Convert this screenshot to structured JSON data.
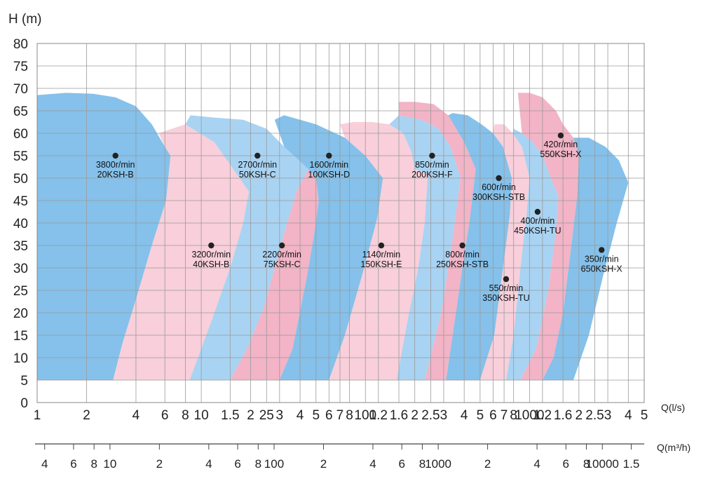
{
  "chart_data": {
    "type": "area",
    "title": "",
    "ylabel": "H (m)",
    "xlabel": "Q(l/s)",
    "x2label": "Q(m³/h)",
    "ylim": [
      0,
      80
    ],
    "xlim_ls": [
      1,
      5000
    ],
    "xlim_m3h": [
      3.6,
      18000
    ],
    "grid": true,
    "y_ticks": [
      "0",
      "5",
      "10",
      "15",
      "20",
      "25",
      "30",
      "35",
      "40",
      "45",
      "50",
      "55",
      "60",
      "65",
      "70",
      "75",
      "80"
    ],
    "x_ticks": [
      {
        "v": 1,
        "t": "1"
      },
      {
        "v": 2,
        "t": "2"
      },
      {
        "v": 4,
        "t": "4"
      },
      {
        "v": 6,
        "t": "6"
      },
      {
        "v": 8,
        "t": "8"
      },
      {
        "v": 10,
        "t": "10"
      },
      {
        "v": 15,
        "t": "1.5"
      },
      {
        "v": 20,
        "t": "2"
      },
      {
        "v": 25,
        "t": "25"
      },
      {
        "v": 30,
        "t": "3"
      },
      {
        "v": 40,
        "t": "4"
      },
      {
        "v": 50,
        "t": "5"
      },
      {
        "v": 60,
        "t": "6"
      },
      {
        "v": 70,
        "t": "7"
      },
      {
        "v": 80,
        "t": "8"
      },
      {
        "v": 100,
        "t": "100"
      },
      {
        "v": 120,
        "t": "1.2"
      },
      {
        "v": 160,
        "t": "1.6"
      },
      {
        "v": 200,
        "t": "2"
      },
      {
        "v": 250,
        "t": "2.5"
      },
      {
        "v": 300,
        "t": "3"
      },
      {
        "v": 400,
        "t": "4"
      },
      {
        "v": 500,
        "t": "5"
      },
      {
        "v": 600,
        "t": "6"
      },
      {
        "v": 700,
        "t": "7"
      },
      {
        "v": 800,
        "t": "8"
      },
      {
        "v": 1000,
        "t": "1000"
      },
      {
        "v": 1200,
        "t": "1.2"
      },
      {
        "v": 1600,
        "t": "1.6"
      },
      {
        "v": 2000,
        "t": "2"
      },
      {
        "v": 2500,
        "t": "2.5"
      },
      {
        "v": 3000,
        "t": "3"
      },
      {
        "v": 4000,
        "t": "4"
      },
      {
        "v": 5000,
        "t": "5"
      }
    ],
    "x2_ticks": [
      {
        "v": 4,
        "t": "4"
      },
      {
        "v": 6,
        "t": "6"
      },
      {
        "v": 8,
        "t": "8"
      },
      {
        "v": 10,
        "t": "10"
      },
      {
        "v": 20,
        "t": "2"
      },
      {
        "v": 40,
        "t": "4"
      },
      {
        "v": 60,
        "t": "6"
      },
      {
        "v": 80,
        "t": "8"
      },
      {
        "v": 100,
        "t": "100"
      },
      {
        "v": 200,
        "t": "2"
      },
      {
        "v": 400,
        "t": "4"
      },
      {
        "v": 600,
        "t": "6"
      },
      {
        "v": 800,
        "t": "8"
      },
      {
        "v": 1000,
        "t": "1000"
      },
      {
        "v": 2000,
        "t": "2"
      },
      {
        "v": 4000,
        "t": "4"
      },
      {
        "v": 6000,
        "t": "6"
      },
      {
        "v": 8000,
        "t": "8"
      },
      {
        "v": 10000,
        "t": "10000"
      },
      {
        "v": 15000,
        "t": "1.5"
      }
    ],
    "series": [
      {
        "name": "3800r/min 20KSH-B",
        "speed": "3800r/min",
        "model": "20KSH-B",
        "color": "#85c1ea",
        "point": [
          3,
          55
        ],
        "polygon": [
          [
            1,
            5
          ],
          [
            1,
            68.5
          ],
          [
            1.5,
            69
          ],
          [
            2.2,
            68.8
          ],
          [
            3,
            68
          ],
          [
            4,
            66
          ],
          [
            5,
            62
          ],
          [
            6,
            57
          ],
          [
            6.5,
            55
          ],
          [
            6.1,
            45
          ],
          [
            5,
            35
          ],
          [
            4,
            23
          ],
          [
            3.3,
            13
          ],
          [
            2.9,
            5
          ]
        ]
      },
      {
        "name": "3200r/min 40KSH-B",
        "speed": "3200r/min",
        "model": "40KSH-B",
        "color": "#f8cfda",
        "point": [
          11.5,
          35
        ],
        "polygon": [
          [
            2.9,
            5
          ],
          [
            3.3,
            13
          ],
          [
            4,
            23
          ],
          [
            5,
            35
          ],
          [
            6.1,
            45
          ],
          [
            6.5,
            55
          ],
          [
            6,
            57
          ],
          [
            5.5,
            60
          ],
          [
            8,
            62
          ],
          [
            12,
            58
          ],
          [
            15,
            53
          ],
          [
            19.5,
            47
          ],
          [
            18,
            40
          ],
          [
            15,
            30
          ],
          [
            11.5,
            18
          ],
          [
            8.5,
            5
          ]
        ]
      },
      {
        "name": "2700r/min 50KSH-C",
        "speed": "2700r/min",
        "model": "50KSH-C",
        "color": "#a9d3f2",
        "point": [
          22,
          55
        ],
        "polygon": [
          [
            8.5,
            5
          ],
          [
            11.5,
            18
          ],
          [
            15,
            30
          ],
          [
            18,
            40
          ],
          [
            19.5,
            47
          ],
          [
            15,
            53
          ],
          [
            12,
            58
          ],
          [
            8,
            62
          ],
          [
            8.6,
            64
          ],
          [
            12,
            63.5
          ],
          [
            18,
            63
          ],
          [
            25,
            61
          ],
          [
            32,
            57
          ],
          [
            45,
            52
          ],
          [
            38,
            47
          ],
          [
            34,
            41
          ],
          [
            30,
            34
          ],
          [
            24,
            21
          ],
          [
            19,
            12
          ],
          [
            15,
            5
          ]
        ]
      },
      {
        "name": "2200r/min 75KSH-C",
        "speed": "2200r/min",
        "model": "75KSH-C",
        "color": "#f2b4c6",
        "point": [
          31,
          35
        ],
        "polygon": [
          [
            15,
            5
          ],
          [
            19,
            12
          ],
          [
            24,
            21
          ],
          [
            30,
            34
          ],
          [
            34,
            41
          ],
          [
            38,
            47
          ],
          [
            45,
            52
          ],
          [
            50,
            50
          ],
          [
            52,
            45
          ],
          [
            49,
            38
          ],
          [
            44,
            28
          ],
          [
            36,
            12
          ],
          [
            30,
            5
          ]
        ]
      },
      {
        "name": "1600r/min 100KSH-D",
        "speed": "1600r/min",
        "model": "100KSH-D",
        "color": "#85c1ea",
        "point": [
          60,
          55
        ],
        "polygon": [
          [
            30,
            5
          ],
          [
            36,
            12
          ],
          [
            44,
            28
          ],
          [
            49,
            38
          ],
          [
            52,
            45
          ],
          [
            50,
            50
          ],
          [
            45,
            52
          ],
          [
            32,
            57
          ],
          [
            28,
            63
          ],
          [
            32,
            64
          ],
          [
            50,
            62
          ],
          [
            75,
            59
          ],
          [
            100,
            55
          ],
          [
            128,
            50
          ],
          [
            118,
            41
          ],
          [
            95,
            28
          ],
          [
            75,
            15
          ],
          [
            60,
            5
          ]
        ]
      },
      {
        "name": "1140r/min 150KSH-E",
        "speed": "1140r/min",
        "model": "150KSH-E",
        "color": "#f8cfda",
        "point": [
          125,
          35
        ],
        "polygon": [
          [
            60,
            5
          ],
          [
            75,
            15
          ],
          [
            95,
            28
          ],
          [
            118,
            41
          ],
          [
            128,
            50
          ],
          [
            100,
            55
          ],
          [
            75,
            59
          ],
          [
            70,
            62
          ],
          [
            85,
            62.5
          ],
          [
            110,
            62.5
          ],
          [
            140,
            62
          ],
          [
            170,
            60
          ],
          [
            190,
            56
          ],
          [
            200,
            52
          ],
          [
            240,
            51
          ],
          [
            230,
            40
          ],
          [
            210,
            30
          ],
          [
            180,
            18
          ],
          [
            155,
            5
          ]
        ]
      },
      {
        "name": "850r/min 200KSH-F",
        "speed": "850r/min",
        "model": "200KSH-F",
        "color": "#a9d3f2",
        "point": [
          255,
          55
        ],
        "polygon": [
          [
            155,
            5
          ],
          [
            180,
            18
          ],
          [
            210,
            30
          ],
          [
            230,
            40
          ],
          [
            240,
            51
          ],
          [
            200,
            52
          ],
          [
            190,
            56
          ],
          [
            170,
            60
          ],
          [
            140,
            62
          ],
          [
            160,
            64
          ],
          [
            220,
            63
          ],
          [
            280,
            61
          ],
          [
            330,
            57
          ],
          [
            380,
            50
          ],
          [
            350,
            40
          ],
          [
            320,
            30
          ],
          [
            290,
            20
          ],
          [
            230,
            5
          ]
        ]
      },
      {
        "name": "800r/min 250KSH-STB",
        "speed": "800r/min",
        "model": "250KSH-STB",
        "color": "#f2b4c6",
        "point": [
          390,
          35
        ],
        "polygon": [
          [
            230,
            5
          ],
          [
            290,
            20
          ],
          [
            320,
            30
          ],
          [
            350,
            40
          ],
          [
            380,
            50
          ],
          [
            330,
            57
          ],
          [
            280,
            61
          ],
          [
            220,
            63
          ],
          [
            160,
            64
          ],
          [
            160,
            67
          ],
          [
            200,
            67
          ],
          [
            260,
            66.5
          ],
          [
            320,
            64
          ],
          [
            400,
            58
          ],
          [
            470,
            52
          ],
          [
            430,
            40
          ],
          [
            390,
            30
          ],
          [
            340,
            15
          ],
          [
            310,
            5
          ]
        ]
      },
      {
        "name": "600r/min 300KSH-STB",
        "speed": "600r/min",
        "model": "300KSH-STB",
        "color": "#85c1ea",
        "point": [
          650,
          50
        ],
        "polygon": [
          [
            310,
            5
          ],
          [
            340,
            15
          ],
          [
            390,
            30
          ],
          [
            430,
            40
          ],
          [
            470,
            52
          ],
          [
            400,
            58
          ],
          [
            320,
            64
          ],
          [
            340,
            64.5
          ],
          [
            420,
            64
          ],
          [
            510,
            62
          ],
          [
            600,
            60
          ],
          [
            690,
            57
          ],
          [
            780,
            50
          ],
          [
            760,
            42
          ],
          [
            690,
            30
          ],
          [
            610,
            15
          ],
          [
            500,
            5
          ]
        ]
      },
      {
        "name": "550r/min 350KSH-TU",
        "speed": "550r/min",
        "model": "350KSH-TU",
        "color": "#f8cfda",
        "point": [
          720,
          27.5
        ],
        "polygon": [
          [
            500,
            5
          ],
          [
            610,
            15
          ],
          [
            690,
            30
          ],
          [
            760,
            42
          ],
          [
            780,
            50
          ],
          [
            690,
            57
          ],
          [
            600,
            60
          ],
          [
            610,
            62
          ],
          [
            700,
            62
          ],
          [
            790,
            60
          ],
          [
            900,
            57
          ],
          [
            1000,
            50
          ],
          [
            960,
            42
          ],
          [
            880,
            30
          ],
          [
            800,
            15
          ],
          [
            720,
            5
          ]
        ]
      },
      {
        "name": "400r/min 450KSH-TU",
        "speed": "400r/min",
        "model": "450KSH-TU",
        "color": "#a9d3f2",
        "point": [
          1120,
          42.5
        ],
        "polygon": [
          [
            720,
            5
          ],
          [
            800,
            15
          ],
          [
            880,
            30
          ],
          [
            960,
            42
          ],
          [
            1000,
            50
          ],
          [
            900,
            57
          ],
          [
            790,
            60
          ],
          [
            800,
            61
          ],
          [
            900,
            60
          ],
          [
            1050,
            58
          ],
          [
            1200,
            55
          ],
          [
            1350,
            50
          ],
          [
            1500,
            46
          ],
          [
            1450,
            38
          ],
          [
            1300,
            25
          ],
          [
            1100,
            12
          ],
          [
            880,
            5
          ]
        ]
      },
      {
        "name": "420r/min 550KSH-X",
        "speed": "420r/min",
        "model": "550KSH-X",
        "color": "#f2b4c6",
        "point": [
          1550,
          59.5
        ],
        "polygon": [
          [
            880,
            5
          ],
          [
            1100,
            12
          ],
          [
            1300,
            25
          ],
          [
            1450,
            38
          ],
          [
            1500,
            46
          ],
          [
            1350,
            50
          ],
          [
            1200,
            55
          ],
          [
            1050,
            58
          ],
          [
            900,
            60
          ],
          [
            850,
            69
          ],
          [
            1000,
            69
          ],
          [
            1200,
            68
          ],
          [
            1450,
            65
          ],
          [
            1600,
            62
          ],
          [
            1850,
            59
          ],
          [
            2000,
            55
          ],
          [
            1950,
            46
          ],
          [
            1800,
            35
          ],
          [
            1600,
            20
          ],
          [
            1400,
            10
          ],
          [
            1200,
            5
          ]
        ]
      },
      {
        "name": "350r/min 650KSH-X",
        "speed": "350r/min",
        "model": "650KSH-X",
        "color": "#85c1ea",
        "point": [
          2750,
          34
        ],
        "polygon": [
          [
            1200,
            5
          ],
          [
            1400,
            10
          ],
          [
            1600,
            20
          ],
          [
            1800,
            35
          ],
          [
            1950,
            46
          ],
          [
            2000,
            55
          ],
          [
            1850,
            59
          ],
          [
            2300,
            59
          ],
          [
            2900,
            57
          ],
          [
            3500,
            54
          ],
          [
            4000,
            49
          ],
          [
            3400,
            40
          ],
          [
            2800,
            28
          ],
          [
            2300,
            15
          ],
          [
            1850,
            5
          ]
        ]
      }
    ]
  }
}
